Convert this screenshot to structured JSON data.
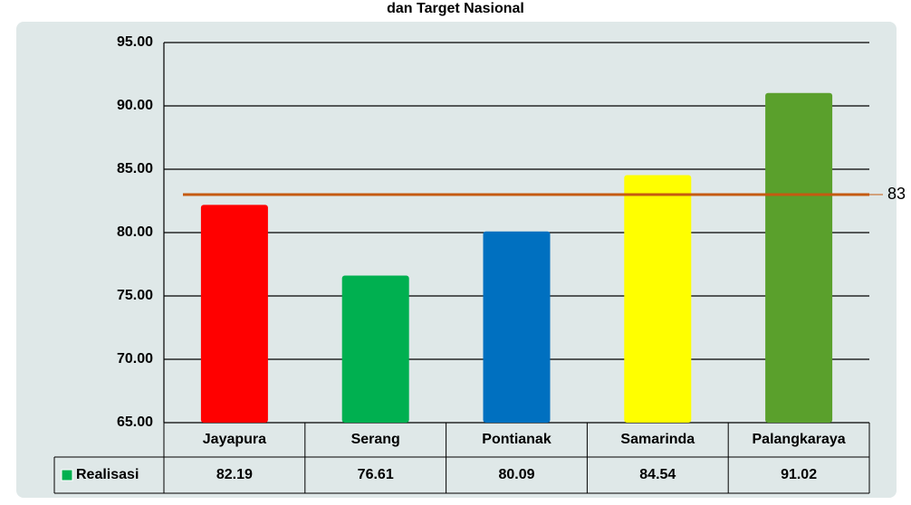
{
  "chart_data": {
    "type": "bar",
    "title": "dan Target Nasional",
    "categories": [
      "Jayapura",
      "Serang",
      "Pontianak",
      "Samarinda",
      "Palangkaraya"
    ],
    "series": [
      {
        "name": "Realisasi",
        "color": "#00b050",
        "colors": [
          "#ff0000",
          "#00b050",
          "#0070c0",
          "#ffff00",
          "#5aa02c"
        ],
        "values": [
          82.19,
          76.61,
          80.09,
          84.54,
          91.02
        ]
      }
    ],
    "target": {
      "value": 83,
      "color": "#c55a11"
    },
    "ylim": [
      65,
      95
    ],
    "yticks": [
      {
        "value": 65,
        "label": "65.00"
      },
      {
        "value": 70,
        "label": "70.00"
      },
      {
        "value": 75,
        "label": "75.00"
      },
      {
        "value": 80,
        "label": "80.00"
      },
      {
        "value": 85,
        "label": "85.00"
      },
      {
        "value": 90,
        "label": "90.00"
      },
      {
        "value": 95,
        "label": "95.00"
      }
    ],
    "grid": true
  }
}
